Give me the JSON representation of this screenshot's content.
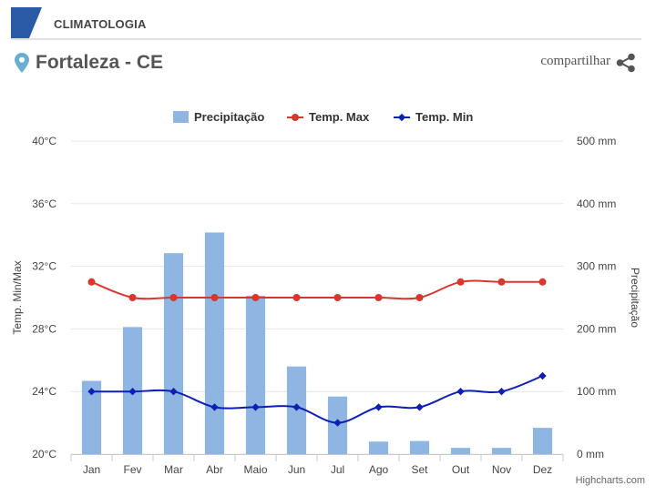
{
  "header": {
    "title": "CLIMATOLOGIA",
    "accent": "#2b5aa6"
  },
  "location": {
    "name": "Fortaleza - CE",
    "pin_color": "#6aaed0"
  },
  "share": {
    "label": "compartilhar"
  },
  "credits": "Highcharts.com",
  "chart_data": {
    "type": "bar+line",
    "categories": [
      "Jan",
      "Fev",
      "Mar",
      "Abr",
      "Maio",
      "Jun",
      "Jul",
      "Ago",
      "Set",
      "Out",
      "Nov",
      "Dez"
    ],
    "series": [
      {
        "name": "Precipitação",
        "type": "bar",
        "axis": "right",
        "color": "#8fb5e3",
        "values": [
          117,
          203,
          321,
          354,
          253,
          140,
          92,
          20,
          21,
          10,
          10,
          42
        ]
      },
      {
        "name": "Temp. Max",
        "type": "line",
        "axis": "left",
        "color": "#d9372e",
        "values": [
          31,
          30,
          30,
          30,
          30,
          30,
          30,
          30,
          30,
          31,
          31,
          31
        ]
      },
      {
        "name": "Temp. Min",
        "type": "line",
        "axis": "left",
        "color": "#0d1fb5",
        "values": [
          24,
          24,
          24,
          23,
          23,
          23,
          22,
          23,
          23,
          24,
          24,
          25
        ]
      }
    ],
    "y_left": {
      "label": "Temp. Min/Max",
      "min": 20,
      "max": 40,
      "ticks": [
        "20°C",
        "24°C",
        "28°C",
        "32°C",
        "36°C",
        "40°C"
      ],
      "tick_values": [
        20,
        24,
        28,
        32,
        36,
        40
      ]
    },
    "y_right": {
      "label": "Precipitação",
      "min": 0,
      "max": 500,
      "ticks": [
        "0 mm",
        "100 mm",
        "200 mm",
        "300 mm",
        "400 mm",
        "500 mm"
      ],
      "tick_values": [
        0,
        100,
        200,
        300,
        400,
        500
      ]
    },
    "legend_position": "top",
    "grid": true
  }
}
